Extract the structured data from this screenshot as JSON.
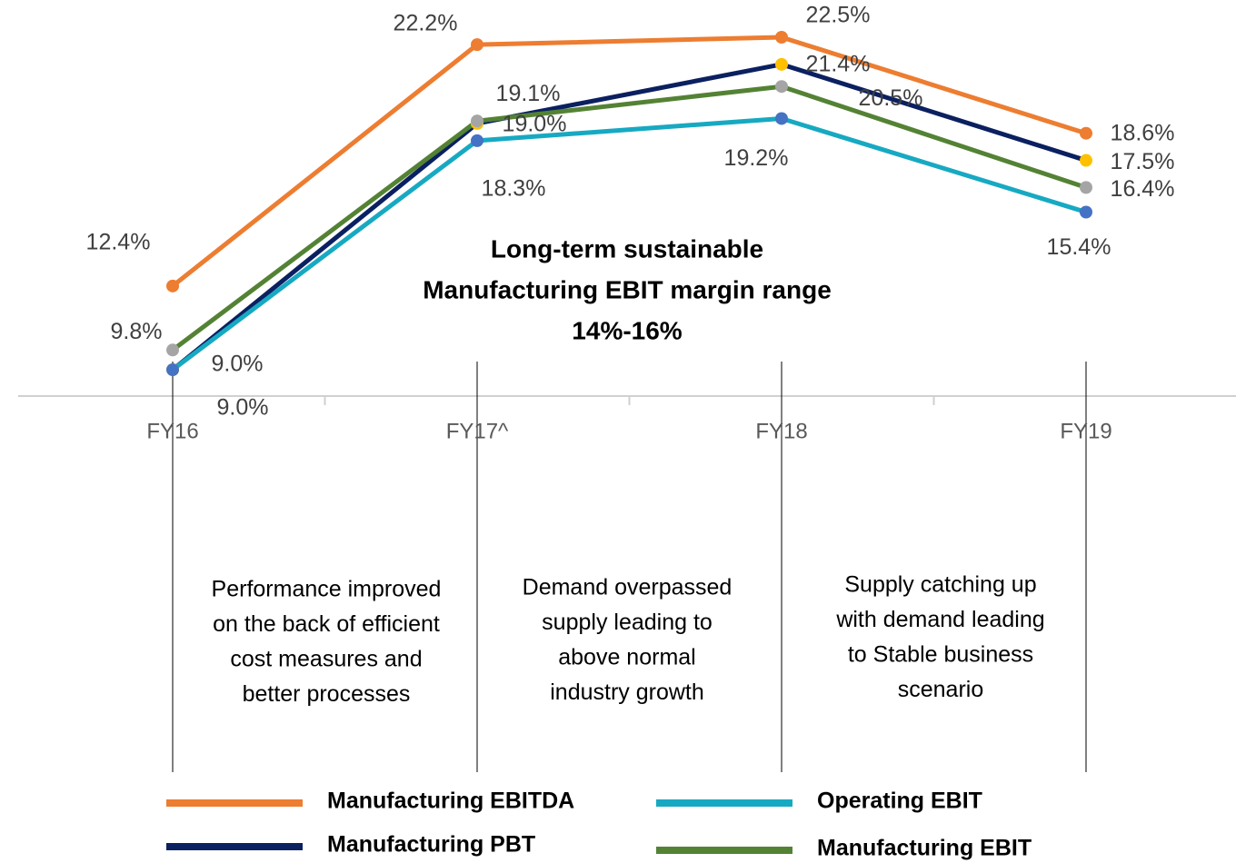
{
  "chart_data": {
    "type": "line",
    "title": [
      "Long-term sustainable",
      "Manufacturing EBIT margin range",
      "14%-16%"
    ],
    "categories": [
      "FY16",
      "FY17^",
      "FY18",
      "FY19"
    ],
    "series": [
      {
        "name": "Manufacturing EBITDA",
        "color": "#ED7D31",
        "marker_color": "#ED7D31",
        "values": [
          12.4,
          22.2,
          22.5,
          18.6
        ],
        "value_labels": [
          "12.4%",
          "22.2%",
          "22.5%",
          "18.6%"
        ]
      },
      {
        "name": "Manufacturing PBT",
        "color": "#0B2060",
        "marker_color": "#FFC000",
        "values": [
          9.0,
          19.0,
          21.4,
          17.5
        ],
        "value_labels": [
          "9.0%",
          "19.0%",
          "21.4%",
          "17.5%"
        ]
      },
      {
        "name": "Operating EBIT",
        "color": "#17A9C2",
        "marker_color": "#4472C4",
        "values": [
          9.0,
          18.3,
          19.2,
          15.4
        ],
        "value_labels": [
          "9.0%",
          "18.3%",
          "19.2%",
          "15.4%"
        ]
      },
      {
        "name": "Manufacturing EBIT",
        "color": "#548235",
        "marker_color": "#A5A5A5",
        "values": [
          9.8,
          19.1,
          20.5,
          16.4
        ],
        "value_labels": [
          "9.8%",
          "19.1%",
          "20.5%",
          "16.4%"
        ]
      }
    ],
    "annotations": [
      [
        "Performance improved",
        "on the back of efficient",
        "cost measures and",
        "better processes"
      ],
      [
        "Demand overpassed",
        "supply leading to",
        "above normal",
        "industry growth"
      ],
      [
        "Supply catching up",
        "with demand leading",
        "to Stable business",
        "scenario"
      ]
    ]
  }
}
